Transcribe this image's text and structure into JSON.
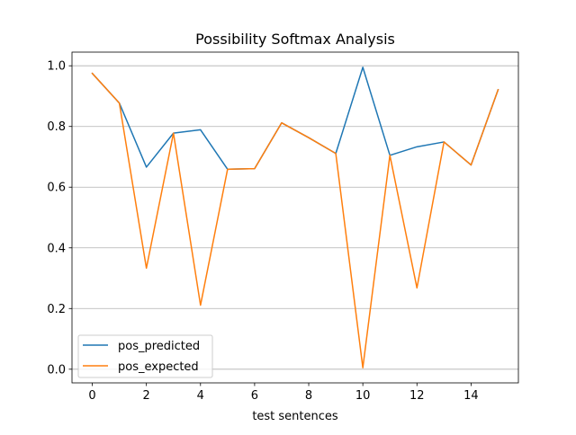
{
  "chart_data": {
    "type": "line",
    "title": "Possibility Softmax Analysis",
    "xlabel": "test sentences",
    "ylabel": "",
    "x": [
      0,
      1,
      2,
      3,
      4,
      5,
      6,
      7,
      8,
      9,
      10,
      11,
      12,
      13,
      14,
      15
    ],
    "xlim": [
      -0.75,
      15.75
    ],
    "ylim": [
      -0.045,
      1.045
    ],
    "xticks": [
      0,
      2,
      4,
      6,
      8,
      10,
      12,
      14
    ],
    "xtick_labels": [
      "0",
      "2",
      "4",
      "6",
      "8",
      "10",
      "12",
      "14"
    ],
    "yticks": [
      0.0,
      0.2,
      0.4,
      0.6,
      0.8,
      1.0
    ],
    "ytick_labels": [
      "0.0",
      "0.2",
      "0.4",
      "0.6",
      "0.8",
      "1.0"
    ],
    "grid": "horizontal",
    "legend_position": "lower-left",
    "series": [
      {
        "name": "pos_predicted",
        "color": "#1f77b4",
        "values": [
          0.975,
          0.877,
          0.666,
          0.778,
          0.789,
          0.659,
          0.661,
          0.812,
          0.763,
          0.711,
          0.995,
          0.705,
          0.733,
          0.749,
          0.673,
          0.921
        ]
      },
      {
        "name": "pos_expected",
        "color": "#ff7f0e",
        "values": [
          0.975,
          0.877,
          0.333,
          0.778,
          0.211,
          0.659,
          0.661,
          0.812,
          0.763,
          0.711,
          0.005,
          0.705,
          0.268,
          0.749,
          0.673,
          0.921
        ]
      }
    ]
  }
}
